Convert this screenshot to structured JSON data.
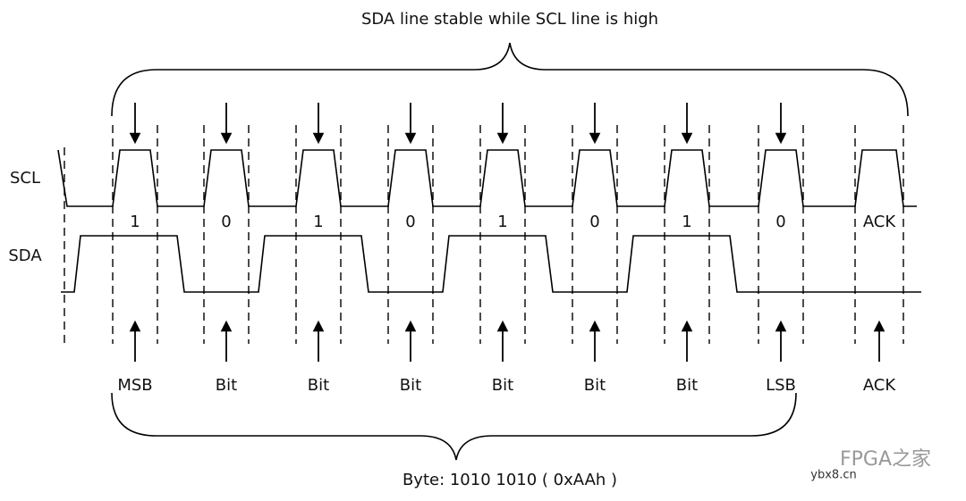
{
  "header": {
    "title": "SDA line stable while SCL line is high"
  },
  "signals": {
    "scl": "SCL",
    "sda": "SDA"
  },
  "bits": [
    "1",
    "0",
    "1",
    "0",
    "1",
    "0",
    "1",
    "0",
    "ACK"
  ],
  "bit_names": [
    "MSB",
    "Bit",
    "Bit",
    "Bit",
    "Bit",
    "Bit",
    "Bit",
    "LSB",
    "ACK"
  ],
  "footer": {
    "byte": "Byte: 1010 1010 ( 0xAAh )"
  },
  "watermark": {
    "brand": "FPGA之家",
    "site": "ybx8.cn"
  }
}
